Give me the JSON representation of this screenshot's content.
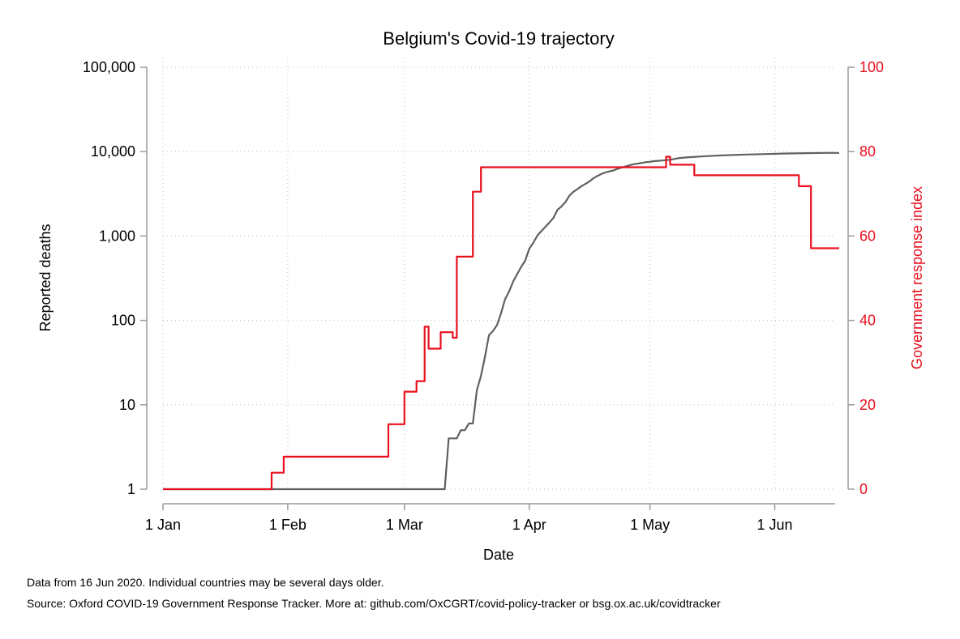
{
  "chart_data": {
    "type": "line",
    "title": "Belgium's Covid-19 trajectory",
    "xlabel": "Date",
    "ylabel_left": "Reported deaths",
    "ylabel_right": "Government response index",
    "left_axis": {
      "scale": "log",
      "range": [
        1,
        100000
      ],
      "ticks": [
        1,
        10,
        100,
        1000,
        10000,
        100000
      ],
      "tick_labels": [
        "1",
        "10",
        "100",
        "1,000",
        "10,000",
        "100,000"
      ]
    },
    "right_axis": {
      "scale": "linear",
      "range": [
        0,
        100
      ],
      "ticks": [
        0,
        20,
        40,
        60,
        80,
        100
      ],
      "tick_labels": [
        "0",
        "20",
        "40",
        "60",
        "80",
        "100"
      ]
    },
    "x_axis": {
      "range_days": [
        0,
        167
      ],
      "ticks_day": [
        0,
        31,
        60,
        91,
        121,
        152
      ],
      "tick_labels": [
        "1 Jan",
        "1 Feb",
        "1 Mar",
        "1 Apr",
        "1 May",
        "1 Jun"
      ]
    },
    "grid": true,
    "colors": {
      "deaths": "#606060",
      "response": "#e8101e",
      "axis": "#9a9a9a",
      "grid": "#bdbdbd"
    },
    "series": [
      {
        "name": "Reported deaths",
        "axis": "left",
        "color": "#606060",
        "step": false,
        "points": [
          [
            0,
            1
          ],
          [
            70,
            1
          ],
          [
            71,
            4
          ],
          [
            73,
            4
          ],
          [
            74,
            5
          ],
          [
            75,
            5
          ],
          [
            76,
            6
          ],
          [
            77,
            6
          ],
          [
            78,
            15
          ],
          [
            79,
            22
          ],
          [
            80,
            37
          ],
          [
            81,
            67
          ],
          [
            82,
            75
          ],
          [
            83,
            88
          ],
          [
            84,
            122
          ],
          [
            85,
            178
          ],
          [
            86,
            220
          ],
          [
            87,
            289
          ],
          [
            88,
            353
          ],
          [
            89,
            431
          ],
          [
            90,
            513
          ],
          [
            91,
            705
          ],
          [
            92,
            828
          ],
          [
            93,
            1011
          ],
          [
            94,
            1143
          ],
          [
            95,
            1283
          ],
          [
            96,
            1447
          ],
          [
            97,
            1632
          ],
          [
            98,
            2035
          ],
          [
            99,
            2240
          ],
          [
            100,
            2523
          ],
          [
            101,
            3019
          ],
          [
            102,
            3346
          ],
          [
            103,
            3600
          ],
          [
            104,
            3903
          ],
          [
            105,
            4157
          ],
          [
            106,
            4440
          ],
          [
            107,
            4857
          ],
          [
            108,
            5163
          ],
          [
            109,
            5453
          ],
          [
            110,
            5683
          ],
          [
            111,
            5828
          ],
          [
            112,
            5998
          ],
          [
            113,
            6262
          ],
          [
            114,
            6490
          ],
          [
            115,
            6679
          ],
          [
            116,
            6917
          ],
          [
            117,
            7094
          ],
          [
            118,
            7207
          ],
          [
            119,
            7331
          ],
          [
            120,
            7501
          ],
          [
            121,
            7594
          ],
          [
            122,
            7703
          ],
          [
            123,
            7765
          ],
          [
            124,
            7844
          ],
          [
            125,
            7924
          ],
          [
            126,
            8016
          ],
          [
            128,
            8339
          ],
          [
            130,
            8521
          ],
          [
            135,
            8843
          ],
          [
            140,
            9080
          ],
          [
            145,
            9237
          ],
          [
            150,
            9364
          ],
          [
            155,
            9505
          ],
          [
            160,
            9595
          ],
          [
            164,
            9650
          ],
          [
            168,
            9661
          ]
        ]
      },
      {
        "name": "Government response index",
        "axis": "right",
        "color": "#e8101e",
        "step": true,
        "points": [
          [
            0,
            0
          ],
          [
            26,
            0
          ],
          [
            27,
            3.9
          ],
          [
            29,
            3.9
          ],
          [
            30,
            7.7
          ],
          [
            55,
            7.7
          ],
          [
            56,
            15.4
          ],
          [
            59,
            15.4
          ],
          [
            60,
            23.1
          ],
          [
            62,
            23.1
          ],
          [
            63,
            25.6
          ],
          [
            64,
            25.6
          ],
          [
            65,
            38.5
          ],
          [
            66,
            33.3
          ],
          [
            68,
            33.3
          ],
          [
            69,
            37.2
          ],
          [
            71,
            37.2
          ],
          [
            72,
            35.9
          ],
          [
            73,
            55.1
          ],
          [
            76,
            55.1
          ],
          [
            77,
            70.5
          ],
          [
            78,
            70.5
          ],
          [
            79,
            76.3
          ],
          [
            124,
            76.3
          ],
          [
            125,
            78.8
          ],
          [
            126,
            76.9
          ],
          [
            131,
            76.9
          ],
          [
            132,
            74.4
          ],
          [
            157,
            74.4
          ],
          [
            158,
            71.8
          ],
          [
            160,
            71.8
          ],
          [
            161,
            57.1
          ],
          [
            168,
            57.1
          ]
        ]
      }
    ],
    "notes": [
      "Data from 16 Jun 2020. Individual countries may be several days older.",
      "Source: Oxford COVID-19 Government Response Tracker. More at: github.com/OxCGRT/covid-policy-tracker or bsg.ox.ac.uk/covidtracker"
    ]
  }
}
